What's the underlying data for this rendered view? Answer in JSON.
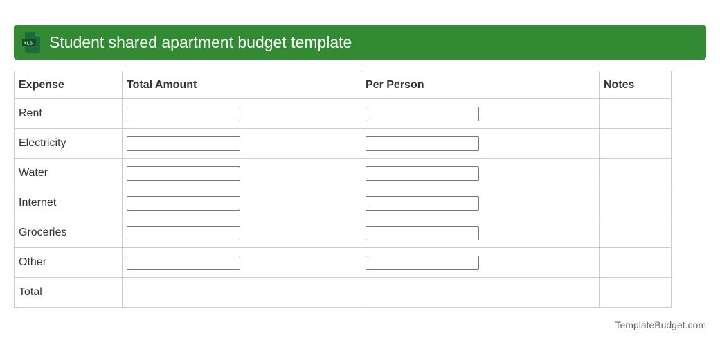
{
  "title": "Student shared apartment budget template",
  "icon": "xls-file-icon",
  "icon_label": "XLS",
  "columns": [
    "Expense",
    "Total Amount",
    "Per Person",
    "Notes"
  ],
  "rows": [
    "Rent",
    "Electricity",
    "Water",
    "Internet",
    "Groceries",
    "Other"
  ],
  "total_label": "Total",
  "footer": "TemplateBudget.com"
}
